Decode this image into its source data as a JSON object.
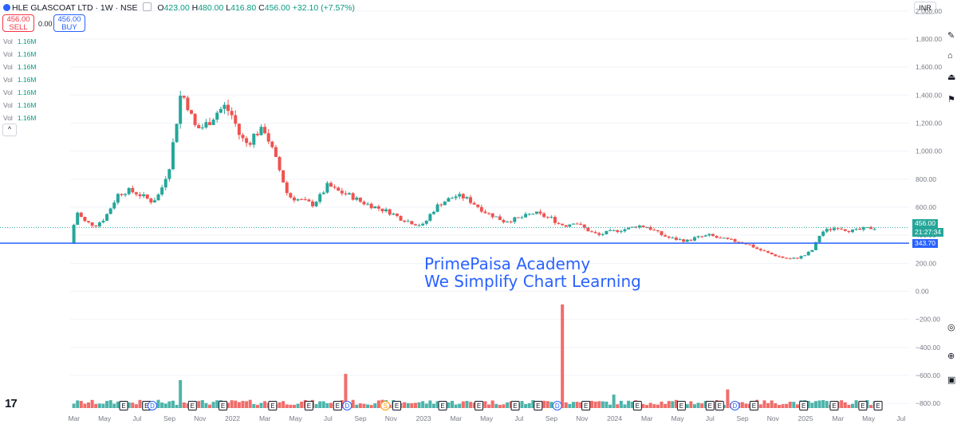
{
  "header": {
    "symbol": "HLE GLASCOAT LTD",
    "interval": "1W",
    "exchange": "NSE",
    "open_label": "O",
    "open": "423.00",
    "high_label": "H",
    "high": "480.00",
    "low_label": "L",
    "low": "416.80",
    "close_label": "C",
    "close": "456.00",
    "change": "+32.10 (+7.57%)"
  },
  "trade": {
    "sell_price": "456.00",
    "sell_label": "SELL",
    "spread": "0.00",
    "buy_price": "456.00",
    "buy_label": "BUY"
  },
  "volume_rows": [
    {
      "label": "Vol",
      "value": "1.16M"
    },
    {
      "label": "Vol",
      "value": "1.16M"
    },
    {
      "label": "Vol",
      "value": "1.16M"
    },
    {
      "label": "Vol",
      "value": "1.16M"
    },
    {
      "label": "Vol",
      "value": "1.16M"
    },
    {
      "label": "Vol",
      "value": "1.16M"
    },
    {
      "label": "Vol",
      "value": "1.16M"
    }
  ],
  "collapse_glyph": "^",
  "currency": "INR",
  "watermark": {
    "line1": "PrimePaisa Academy",
    "line2": "We Simplify Chart Learning"
  },
  "price_tag": {
    "price": "456.00",
    "countdown": "21:27:34",
    "support": "343.70"
  },
  "tv_logo": "17",
  "colors": {
    "up": "#26a69a",
    "down": "#ef5350",
    "line": "#2962ff",
    "grid": "#f0f3fa",
    "axis_text": "#787b86",
    "dotted": "#26a69a"
  },
  "icons": [
    "tv-logo-icon",
    "eye-icon",
    "settings-icon",
    "calendar-icon",
    "alert-icon",
    "sync-icon",
    "goto-icon"
  ],
  "chart_data": {
    "type": "candlestick",
    "symbol": "HLE GLASCOAT LTD",
    "timeframe": "1W",
    "ylim": [
      -850,
      2050
    ],
    "y_ticks": [
      2000,
      1800,
      1600,
      1400,
      1200,
      1000,
      800,
      600,
      400,
      200,
      0,
      -200,
      -400,
      -600,
      -800
    ],
    "y_tick_labels": [
      "2,000.00",
      "1,800.00",
      "1,600.00",
      "1,400.00",
      "1,200.00",
      "1,000.00",
      "800.00",
      "600.00",
      "400.00",
      "200.00",
      "0.00",
      "−200.00",
      "−400.00",
      "−600.00",
      "−800.00"
    ],
    "x_tick_labels": [
      {
        "label": "Mar",
        "t": 2021.17
      },
      {
        "label": "May",
        "t": 2021.33
      },
      {
        "label": "Jul",
        "t": 2021.5
      },
      {
        "label": "Sep",
        "t": 2021.67
      },
      {
        "label": "Nov",
        "t": 2021.83
      },
      {
        "label": "2022",
        "t": 2022.0
      },
      {
        "label": "Mar",
        "t": 2022.17
      },
      {
        "label": "May",
        "t": 2022.33
      },
      {
        "label": "Jul",
        "t": 2022.5
      },
      {
        "label": "Sep",
        "t": 2022.67
      },
      {
        "label": "Nov",
        "t": 2022.83
      },
      {
        "label": "2023",
        "t": 2023.0
      },
      {
        "label": "Mar",
        "t": 2023.17
      },
      {
        "label": "May",
        "t": 2023.33
      },
      {
        "label": "Jul",
        "t": 2023.5
      },
      {
        "label": "Sep",
        "t": 2023.67
      },
      {
        "label": "Nov",
        "t": 2023.83
      },
      {
        "label": "2024",
        "t": 2024.0
      },
      {
        "label": "Mar",
        "t": 2024.17
      },
      {
        "label": "May",
        "t": 2024.33
      },
      {
        "label": "Jul",
        "t": 2024.5
      },
      {
        "label": "Sep",
        "t": 2024.67
      },
      {
        "label": "Nov",
        "t": 2024.83
      },
      {
        "label": "2025",
        "t": 2025.0
      },
      {
        "label": "Mar",
        "t": 2025.17
      },
      {
        "label": "May",
        "t": 2025.33
      },
      {
        "label": "Jul",
        "t": 2025.5
      }
    ],
    "x_range": [
      2021.15,
      2025.53
    ],
    "price_path": [
      [
        2021.15,
        340
      ],
      [
        2021.17,
        480
      ],
      [
        2021.19,
        570
      ],
      [
        2021.22,
        500
      ],
      [
        2021.28,
        470
      ],
      [
        2021.33,
        520
      ],
      [
        2021.4,
        690
      ],
      [
        2021.45,
        720
      ],
      [
        2021.5,
        700
      ],
      [
        2021.58,
        640
      ],
      [
        2021.62,
        700
      ],
      [
        2021.67,
        900
      ],
      [
        2021.7,
        1150
      ],
      [
        2021.73,
        1420
      ],
      [
        2021.76,
        1350
      ],
      [
        2021.8,
        1180
      ],
      [
        2021.83,
        1160
      ],
      [
        2021.87,
        1200
      ],
      [
        2021.92,
        1280
      ],
      [
        2021.96,
        1320
      ],
      [
        2022.0,
        1250
      ],
      [
        2022.04,
        1100
      ],
      [
        2022.08,
        1050
      ],
      [
        2022.12,
        1130
      ],
      [
        2022.17,
        1150
      ],
      [
        2022.21,
        1000
      ],
      [
        2022.25,
        850
      ],
      [
        2022.29,
        680
      ],
      [
        2022.33,
        660
      ],
      [
        2022.38,
        640
      ],
      [
        2022.42,
        620
      ],
      [
        2022.46,
        680
      ],
      [
        2022.5,
        760
      ],
      [
        2022.54,
        720
      ],
      [
        2022.58,
        700
      ],
      [
        2022.62,
        680
      ],
      [
        2022.67,
        640
      ],
      [
        2022.71,
        620
      ],
      [
        2022.75,
        600
      ],
      [
        2022.79,
        580
      ],
      [
        2022.83,
        560
      ],
      [
        2022.88,
        520
      ],
      [
        2022.92,
        500
      ],
      [
        2022.96,
        480
      ],
      [
        2023.0,
        470
      ],
      [
        2023.04,
        560
      ],
      [
        2023.08,
        620
      ],
      [
        2023.12,
        650
      ],
      [
        2023.17,
        680
      ],
      [
        2023.21,
        670
      ],
      [
        2023.25,
        640
      ],
      [
        2023.29,
        600
      ],
      [
        2023.33,
        560
      ],
      [
        2023.38,
        530
      ],
      [
        2023.42,
        500
      ],
      [
        2023.46,
        510
      ],
      [
        2023.5,
        520
      ],
      [
        2023.54,
        540
      ],
      [
        2023.58,
        560
      ],
      [
        2023.62,
        540
      ],
      [
        2023.67,
        520
      ],
      [
        2023.71,
        480
      ],
      [
        2023.75,
        470
      ],
      [
        2023.79,
        500
      ],
      [
        2023.83,
        460
      ],
      [
        2023.88,
        420
      ],
      [
        2023.92,
        400
      ],
      [
        2023.96,
        420
      ],
      [
        2024.0,
        430
      ],
      [
        2024.04,
        440
      ],
      [
        2024.08,
        450
      ],
      [
        2024.12,
        470
      ],
      [
        2024.17,
        460
      ],
      [
        2024.21,
        430
      ],
      [
        2024.25,
        400
      ],
      [
        2024.29,
        380
      ],
      [
        2024.33,
        370
      ],
      [
        2024.38,
        360
      ],
      [
        2024.42,
        380
      ],
      [
        2024.46,
        390
      ],
      [
        2024.5,
        400
      ],
      [
        2024.54,
        380
      ],
      [
        2024.58,
        370
      ],
      [
        2024.62,
        360
      ],
      [
        2024.67,
        350
      ],
      [
        2024.71,
        330
      ],
      [
        2024.75,
        300
      ],
      [
        2024.79,
        280
      ],
      [
        2024.83,
        260
      ],
      [
        2024.88,
        240
      ],
      [
        2024.92,
        230
      ],
      [
        2024.96,
        240
      ],
      [
        2025.0,
        260
      ],
      [
        2025.04,
        300
      ],
      [
        2025.08,
        420
      ],
      [
        2025.12,
        440
      ],
      [
        2025.17,
        460
      ],
      [
        2025.21,
        440
      ],
      [
        2025.25,
        430
      ],
      [
        2025.29,
        440
      ],
      [
        2025.33,
        450
      ],
      [
        2025.38,
        456
      ]
    ],
    "levels": [
      {
        "name": "support",
        "value": 343.7
      }
    ],
    "last_price": 456.0,
    "volume_spikes": [
      {
        "t": 2021.72,
        "v": 0.27,
        "dir": "up"
      },
      {
        "t": 2022.6,
        "v": 0.33,
        "dir": "up"
      },
      {
        "t": 2023.72,
        "v": 1.0,
        "dir": "down"
      },
      {
        "t": 2024.0,
        "v": 0.13,
        "dir": "down"
      },
      {
        "t": 2024.6,
        "v": 0.18,
        "dir": "down"
      },
      {
        "t": 2025.38,
        "v": 0.3,
        "dir": "up"
      }
    ],
    "event_markers": [
      {
        "t": 2021.43,
        "label": "E"
      },
      {
        "t": 2021.55,
        "label": "E"
      },
      {
        "t": 2021.58,
        "label": "D"
      },
      {
        "t": 2021.79,
        "label": "E"
      },
      {
        "t": 2021.95,
        "label": "E"
      },
      {
        "t": 2022.21,
        "label": "E"
      },
      {
        "t": 2022.4,
        "label": "E"
      },
      {
        "t": 2022.55,
        "label": "E"
      },
      {
        "t": 2022.6,
        "label": "D"
      },
      {
        "t": 2022.8,
        "label": "S"
      },
      {
        "t": 2022.86,
        "label": "E"
      },
      {
        "t": 2023.1,
        "label": "E"
      },
      {
        "t": 2023.29,
        "label": "E"
      },
      {
        "t": 2023.48,
        "label": "E"
      },
      {
        "t": 2023.6,
        "label": "E"
      },
      {
        "t": 2023.7,
        "label": "D"
      },
      {
        "t": 2023.85,
        "label": "E"
      },
      {
        "t": 2024.12,
        "label": "E"
      },
      {
        "t": 2024.35,
        "label": "E"
      },
      {
        "t": 2024.5,
        "label": "E"
      },
      {
        "t": 2024.55,
        "label": "E"
      },
      {
        "t": 2024.63,
        "label": "D"
      },
      {
        "t": 2024.73,
        "label": "E"
      },
      {
        "t": 2024.99,
        "label": "E"
      },
      {
        "t": 2025.15,
        "label": "E"
      },
      {
        "t": 2025.3,
        "label": "E"
      },
      {
        "t": 2025.38,
        "label": "E"
      }
    ]
  }
}
